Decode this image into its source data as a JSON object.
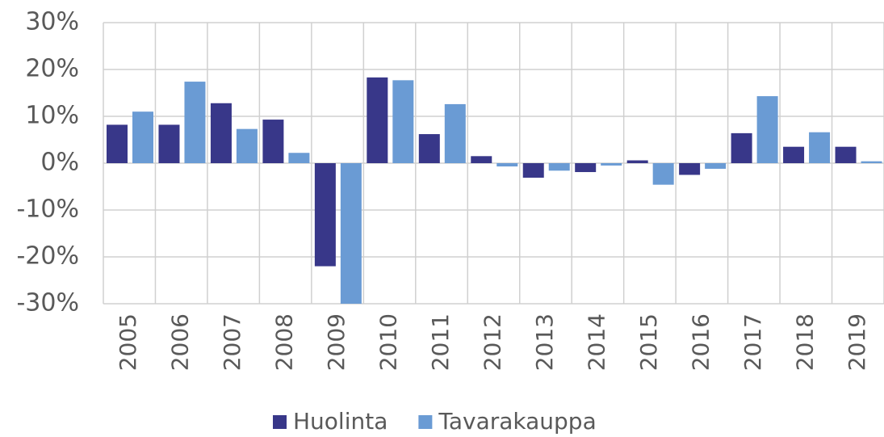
{
  "chart_data": {
    "type": "bar",
    "categories": [
      "2005",
      "2006",
      "2007",
      "2008",
      "2009",
      "2010",
      "2011",
      "2012",
      "2013",
      "2014",
      "2015",
      "2016",
      "2017",
      "2018",
      "2019"
    ],
    "series": [
      {
        "name": "Huolinta",
        "color": "#383789",
        "values": [
          8.2,
          8.2,
          12.8,
          9.3,
          -22.0,
          18.3,
          6.2,
          1.5,
          -3.1,
          -1.9,
          0.6,
          -2.5,
          6.4,
          3.5,
          3.5
        ]
      },
      {
        "name": "Tavarakauppa",
        "color": "#6a9bd4",
        "values": [
          11.0,
          17.4,
          7.3,
          2.2,
          -30.0,
          17.7,
          12.6,
          -0.7,
          -1.6,
          -0.5,
          -4.6,
          -1.2,
          14.3,
          6.6,
          0.4
        ]
      }
    ],
    "ylim": [
      -30,
      30
    ],
    "yticks": [
      {
        "value": -30,
        "label": "-30%"
      },
      {
        "value": -20,
        "label": "-20%"
      },
      {
        "value": -10,
        "label": "-10%"
      },
      {
        "value": 0,
        "label": "0%"
      },
      {
        "value": 10,
        "label": "10%"
      },
      {
        "value": 20,
        "label": "20%"
      },
      {
        "value": 30,
        "label": "30%"
      }
    ],
    "grid": true,
    "legend": "bottom"
  }
}
